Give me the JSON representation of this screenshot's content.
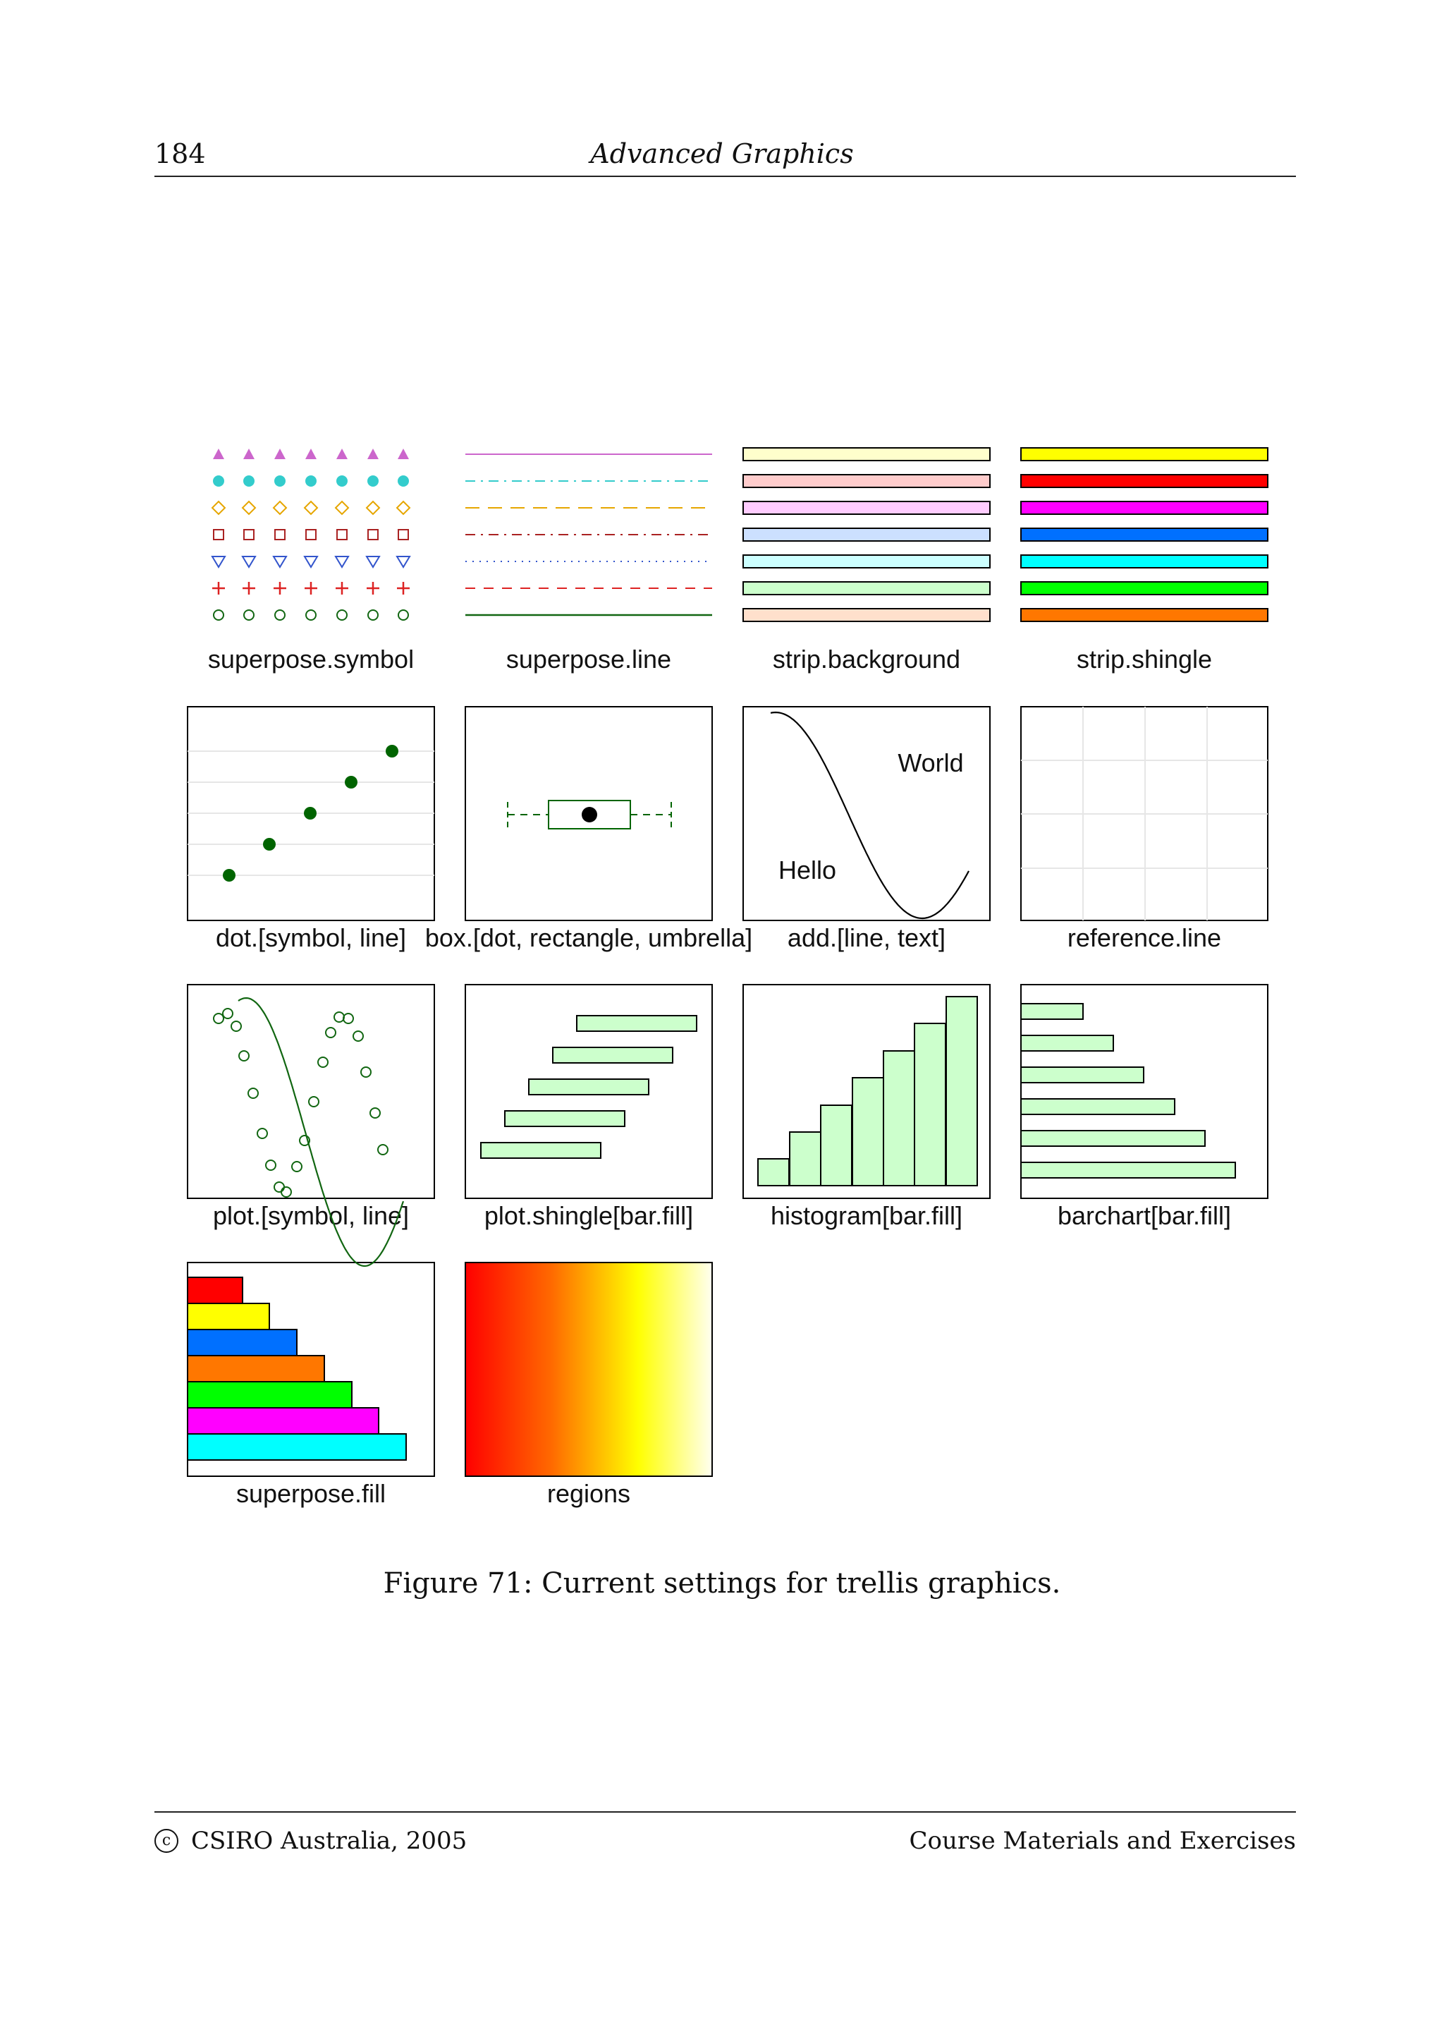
{
  "header": {
    "page_number": "184",
    "running_title": "Advanced Graphics"
  },
  "figure": {
    "caption": "Figure 71: Current settings for trellis graphics.",
    "panels": [
      {
        "id": "superpose-symbol",
        "label": "superpose.symbol"
      },
      {
        "id": "superpose-line",
        "label": "superpose.line"
      },
      {
        "id": "strip-background",
        "label": "strip.background"
      },
      {
        "id": "strip-shingle",
        "label": "strip.shingle"
      },
      {
        "id": "dot",
        "label": "dot.[symbol, line]"
      },
      {
        "id": "box",
        "label": "box.[dot, rectangle, umbrella]"
      },
      {
        "id": "add",
        "label": "add.[line, text]"
      },
      {
        "id": "reference-line",
        "label": "reference.line"
      },
      {
        "id": "plot",
        "label": "plot.[symbol, line]"
      },
      {
        "id": "plot-shingle",
        "label": "plot.shingle[bar.fill]"
      },
      {
        "id": "histogram",
        "label": "histogram[bar.fill]"
      },
      {
        "id": "barchart",
        "label": "barchart[bar.fill]"
      },
      {
        "id": "superpose-fill",
        "label": "superpose.fill"
      },
      {
        "id": "regions",
        "label": "regions"
      }
    ],
    "add_text": {
      "hello": "Hello",
      "world": "World"
    },
    "colors": {
      "superpose_symbol": [
        "#cc66cc",
        "#33cccc",
        "#e6a600",
        "#aa2222",
        "#3355cc",
        "#dd2222",
        "#116611"
      ],
      "strip_background": [
        "#ffffcc",
        "#ffcccc",
        "#ffccff",
        "#cce0ff",
        "#ccffff",
        "#ccffcc",
        "#ffe0cc"
      ],
      "strip_shingle": [
        "#ffff00",
        "#ff0000",
        "#ff00ff",
        "#0070ff",
        "#00ffff",
        "#00ff00",
        "#ff7700"
      ],
      "superpose_fill": [
        "#ff0000",
        "#ffff00",
        "#0070ff",
        "#ff7700",
        "#00ff00",
        "#ff00ff",
        "#00ffff"
      ],
      "bar_fill": "#ccffcc",
      "dot_symbol": "#006400",
      "plot_line": "#116611"
    }
  },
  "footer": {
    "copyright_icon": "c",
    "left": "CSIRO Australia, 2005",
    "right": "Course Materials and Exercises"
  }
}
